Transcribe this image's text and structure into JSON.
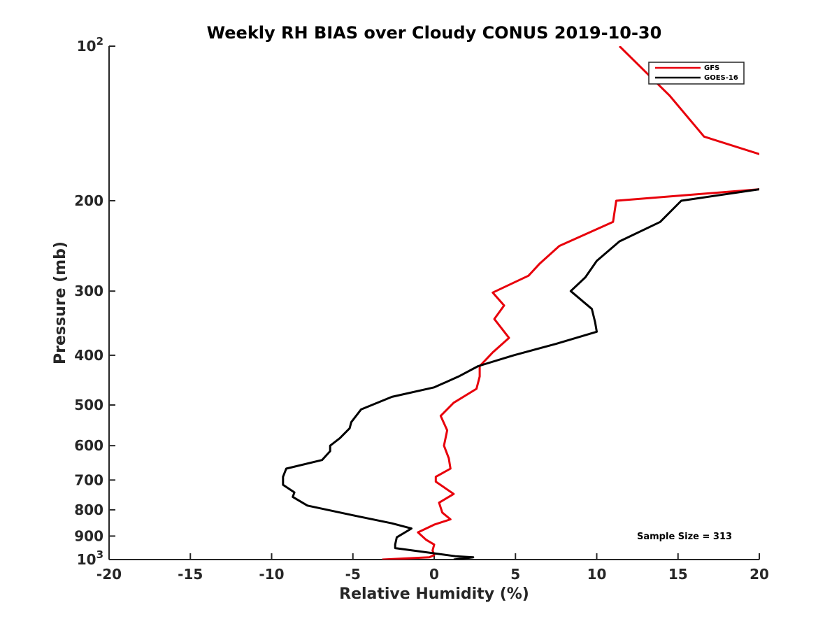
{
  "chart_data": {
    "type": "line",
    "title": "Weekly RH BIAS over Cloudy CONUS 2019-10-30",
    "xlabel": "Relative Humidity (%)",
    "ylabel": "Pressure (mb)",
    "xlim": [
      -20,
      20
    ],
    "ylim": [
      100,
      1000
    ],
    "yscale": "log",
    "y_reversed": true,
    "grid": false,
    "legend_position": "top-right",
    "xticks": [
      -20,
      -15,
      -10,
      -5,
      0,
      5,
      10,
      15,
      20
    ],
    "xtick_labels": [
      "-20",
      "-15",
      "-10",
      "-5",
      "0",
      "5",
      "10",
      "15",
      "20"
    ],
    "yticks": [
      100,
      200,
      300,
      400,
      500,
      600,
      700,
      800,
      900,
      1000
    ],
    "ytick_labels": [
      {
        "base": "10",
        "exp": "2"
      },
      {
        "base": "200",
        "exp": ""
      },
      {
        "base": "300",
        "exp": ""
      },
      {
        "base": "400",
        "exp": ""
      },
      {
        "base": "500",
        "exp": ""
      },
      {
        "base": "600",
        "exp": ""
      },
      {
        "base": "700",
        "exp": ""
      },
      {
        "base": "800",
        "exp": ""
      },
      {
        "base": "900",
        "exp": ""
      },
      {
        "base": "10",
        "exp": "3"
      }
    ],
    "annotation": "Sample Size = 313",
    "series": [
      {
        "name": "GFS",
        "color": "#e8000b",
        "points": [
          [
            11.4,
            100
          ],
          [
            14.5,
            125
          ],
          [
            16.6,
            150
          ],
          [
            22.0,
            170
          ],
          [
            24.0,
            185
          ],
          [
            20.0,
            190
          ],
          [
            11.2,
            200
          ],
          [
            11.0,
            220
          ],
          [
            7.7,
            245
          ],
          [
            6.5,
            265
          ],
          [
            5.8,
            280
          ],
          [
            3.6,
            302
          ],
          [
            4.3,
            320
          ],
          [
            3.7,
            340
          ],
          [
            4.6,
            370
          ],
          [
            3.6,
            395
          ],
          [
            2.8,
            420
          ],
          [
            2.8,
            440
          ],
          [
            2.6,
            465
          ],
          [
            1.2,
            495
          ],
          [
            0.4,
            525
          ],
          [
            0.8,
            560
          ],
          [
            0.6,
            600
          ],
          [
            0.9,
            635
          ],
          [
            1.0,
            665
          ],
          [
            0.1,
            690
          ],
          [
            0.1,
            705
          ],
          [
            1.2,
            745
          ],
          [
            0.3,
            775
          ],
          [
            0.5,
            810
          ],
          [
            1.0,
            835
          ],
          [
            0.0,
            855
          ],
          [
            -1.0,
            885
          ],
          [
            -0.5,
            915
          ],
          [
            0.0,
            935
          ],
          [
            -0.1,
            960
          ],
          [
            0.0,
            980
          ],
          [
            -0.3,
            990
          ],
          [
            -3.2,
            1000
          ]
        ]
      },
      {
        "name": "GOES-16",
        "color": "#000000",
        "points": [
          [
            20.0,
            190
          ],
          [
            15.2,
            200
          ],
          [
            13.9,
            220
          ],
          [
            11.4,
            240
          ],
          [
            10.0,
            262
          ],
          [
            9.3,
            282
          ],
          [
            8.4,
            300
          ],
          [
            9.7,
            325
          ],
          [
            9.9,
            345
          ],
          [
            10.0,
            360
          ],
          [
            7.5,
            380
          ],
          [
            4.9,
            400
          ],
          [
            2.7,
            420
          ],
          [
            1.5,
            440
          ],
          [
            0.0,
            462
          ],
          [
            -2.6,
            482
          ],
          [
            -4.5,
            510
          ],
          [
            -5.1,
            540
          ],
          [
            -5.2,
            555
          ],
          [
            -5.8,
            580
          ],
          [
            -6.4,
            600
          ],
          [
            -6.4,
            615
          ],
          [
            -6.9,
            640
          ],
          [
            -9.1,
            665
          ],
          [
            -9.3,
            690
          ],
          [
            -9.3,
            715
          ],
          [
            -8.6,
            740
          ],
          [
            -8.7,
            755
          ],
          [
            -7.8,
            785
          ],
          [
            -5.0,
            820
          ],
          [
            -2.6,
            850
          ],
          [
            -1.4,
            870
          ],
          [
            -2.3,
            905
          ],
          [
            -2.4,
            935
          ],
          [
            -2.4,
            950
          ],
          [
            1.3,
            985
          ],
          [
            2.4,
            990
          ],
          [
            1.2,
            1000
          ]
        ]
      }
    ]
  }
}
